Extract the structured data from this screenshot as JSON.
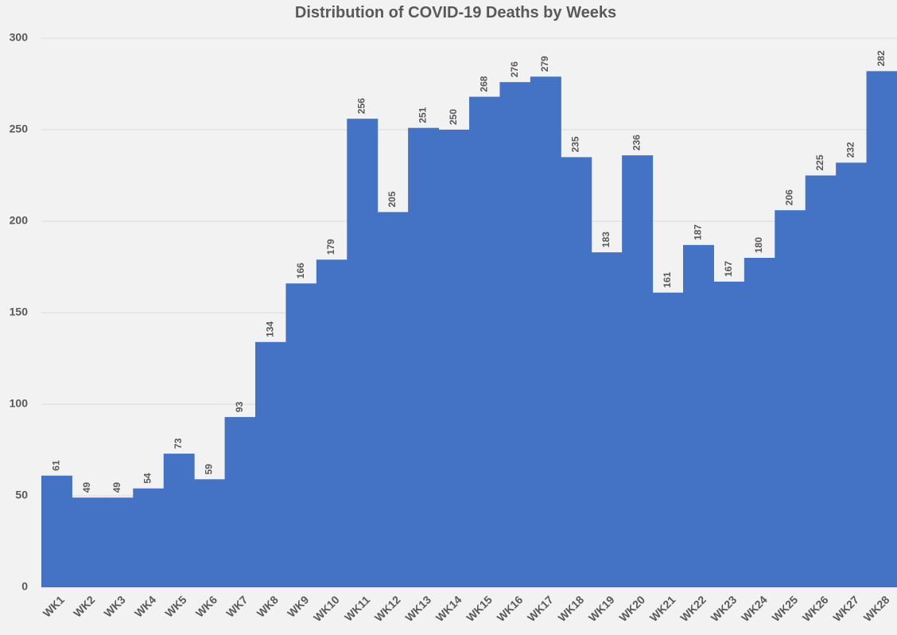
{
  "chart_data": {
    "type": "bar",
    "title": "Distribution of COVID-19 Deaths by Weeks",
    "categories": [
      "WK1",
      "WK2",
      "WK3",
      "WK4",
      "WK5",
      "WK6",
      "WK7",
      "WK8",
      "WK9",
      "WK10",
      "WK11",
      "WK12",
      "WK13",
      "WK14",
      "WK15",
      "WK16",
      "WK17",
      "WK18",
      "WK19",
      "WK20",
      "WK21",
      "WK22",
      "WK23",
      "WK24",
      "WK25",
      "WK26",
      "WK27",
      "WK28"
    ],
    "values": [
      61,
      49,
      49,
      54,
      73,
      59,
      93,
      134,
      166,
      179,
      256,
      205,
      251,
      250,
      268,
      276,
      279,
      235,
      183,
      236,
      161,
      187,
      167,
      180,
      206,
      225,
      232,
      282
    ],
    "color": "#4472c4",
    "ylim": [
      0,
      300
    ],
    "yticks": [
      0,
      50,
      100,
      150,
      200,
      250,
      300
    ],
    "grid": true
  }
}
